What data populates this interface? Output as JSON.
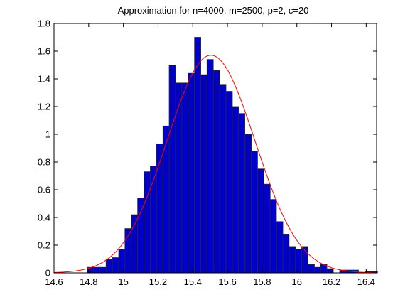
{
  "chart_data": {
    "type": "bar",
    "title": "Approximation for n=4000, m=2500, p=2, c=20",
    "xlabel": "",
    "ylabel": "",
    "xlim": [
      14.6,
      16.46
    ],
    "ylim": [
      0,
      1.8
    ],
    "xticks": [
      "14.6",
      "14.8",
      "15",
      "15.2",
      "15.4",
      "15.6",
      "15.8",
      "16",
      "16.2",
      "16.4"
    ],
    "yticks": [
      "0",
      "0.2",
      "0.4",
      "0.6",
      "0.8",
      "1",
      "1.2",
      "1.4",
      "1.6",
      "1.8"
    ],
    "grid": false,
    "legend": "none",
    "bin_width": 0.0364,
    "bins": [
      {
        "x0": 14.791,
        "h": 0.04
      },
      {
        "x0": 14.827,
        "h": 0.04
      },
      {
        "x0": 14.864,
        "h": 0.04
      },
      {
        "x0": 14.9,
        "h": 0.1
      },
      {
        "x0": 14.937,
        "h": 0.11
      },
      {
        "x0": 14.973,
        "h": 0.17
      },
      {
        "x0": 15.009,
        "h": 0.32
      },
      {
        "x0": 15.046,
        "h": 0.42
      },
      {
        "x0": 15.082,
        "h": 0.54
      },
      {
        "x0": 15.119,
        "h": 0.73
      },
      {
        "x0": 15.155,
        "h": 0.77
      },
      {
        "x0": 15.191,
        "h": 0.93
      },
      {
        "x0": 15.228,
        "h": 1.06
      },
      {
        "x0": 15.264,
        "h": 1.5
      },
      {
        "x0": 15.301,
        "h": 1.37
      },
      {
        "x0": 15.337,
        "h": 1.37
      },
      {
        "x0": 15.373,
        "h": 1.44
      },
      {
        "x0": 15.41,
        "h": 1.7
      },
      {
        "x0": 15.446,
        "h": 1.43
      },
      {
        "x0": 15.482,
        "h": 1.54
      },
      {
        "x0": 15.519,
        "h": 1.46
      },
      {
        "x0": 15.555,
        "h": 1.36
      },
      {
        "x0": 15.592,
        "h": 1.31
      },
      {
        "x0": 15.628,
        "h": 1.2
      },
      {
        "x0": 15.664,
        "h": 1.15
      },
      {
        "x0": 15.701,
        "h": 1.0
      },
      {
        "x0": 15.737,
        "h": 0.88
      },
      {
        "x0": 15.774,
        "h": 0.75
      },
      {
        "x0": 15.81,
        "h": 0.64
      },
      {
        "x0": 15.846,
        "h": 0.53
      },
      {
        "x0": 15.883,
        "h": 0.37
      },
      {
        "x0": 15.919,
        "h": 0.28
      },
      {
        "x0": 15.956,
        "h": 0.19
      },
      {
        "x0": 15.992,
        "h": 0.17
      },
      {
        "x0": 16.028,
        "h": 0.19
      },
      {
        "x0": 16.065,
        "h": 0.06
      },
      {
        "x0": 16.101,
        "h": 0.04
      },
      {
        "x0": 16.137,
        "h": 0.06
      },
      {
        "x0": 16.174,
        "h": 0.03
      },
      {
        "x0": 16.21,
        "h": 0.0
      },
      {
        "x0": 16.247,
        "h": 0.02
      },
      {
        "x0": 16.283,
        "h": 0.02
      },
      {
        "x0": 16.319,
        "h": 0.02
      },
      {
        "x0": 16.356,
        "h": 0.0
      },
      {
        "x0": 16.392,
        "h": 0.01
      },
      {
        "x0": 16.429,
        "h": 0.01
      }
    ],
    "curve": {
      "type": "normal",
      "mean": 15.505,
      "sd": 0.254,
      "x_range": [
        14.6,
        16.46
      ]
    },
    "colors": {
      "bar_fill": "#0000c8",
      "bar_edge": "#2a2a2a",
      "curve": "#ff0000",
      "axis": "#000000"
    }
  }
}
